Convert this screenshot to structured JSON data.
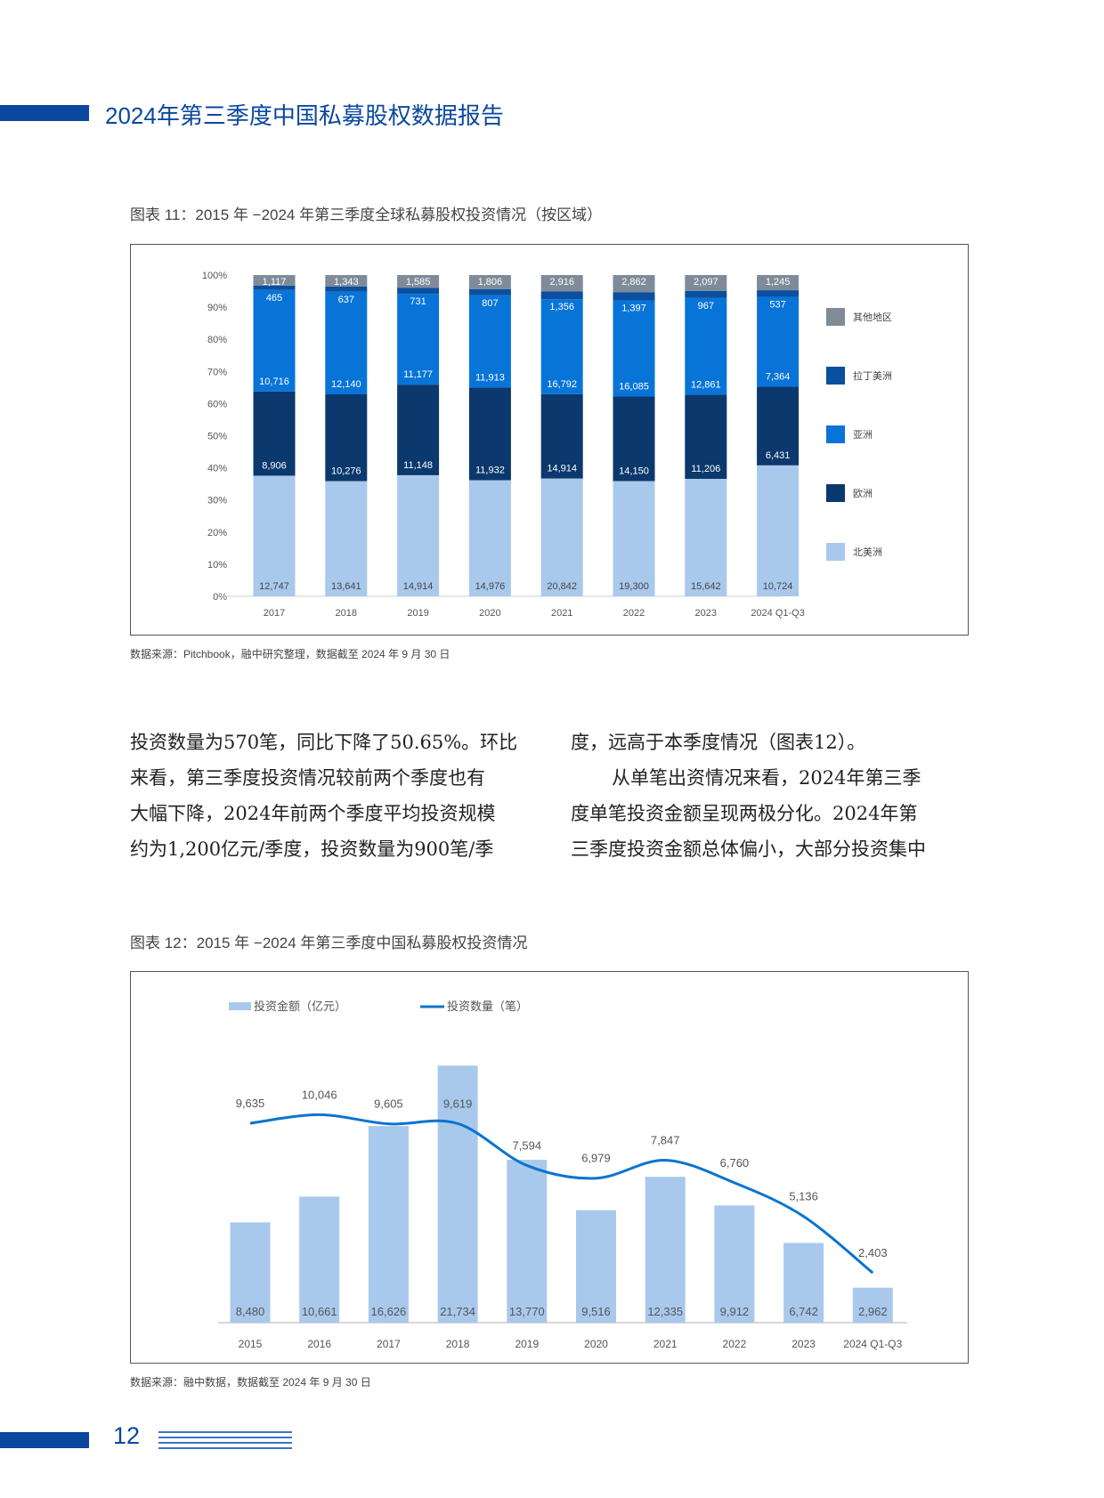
{
  "header": {
    "title": "2024年第三季度中国私募股权数据报告",
    "brand_color": "#0a479e"
  },
  "figure11": {
    "caption": "图表 11：2015 年 −2024 年第三季度全球私募股权投资情况（按区域）",
    "source": "数据来源：Pitchbook，融中研究整理，数据截至 2024 年 9 月 30 日"
  },
  "body": {
    "left_lines": [
      "投资数量为570笔，同比下降了50.65%。环比",
      "来看，第三季度投资情况较前两个季度也有",
      "大幅下降，2024年前两个季度平均投资规模",
      "约为1,200亿元/季度，投资数量为900笔/季"
    ],
    "right_lines": [
      "度，远高于本季度情况（图表12）。",
      "从单笔出资情况来看，2024年第三季",
      "度单笔投资金额呈现两极分化。2024年第",
      "三季度投资金额总体偏小，大部分投资集中"
    ]
  },
  "figure12": {
    "caption": "图表 12：2015 年 −2024 年第三季度中国私募股权投资情况",
    "source": "数据来源：融中数据，数据截至 2024 年 9 月 30 日"
  },
  "footer": {
    "page_number": "12"
  },
  "chart_data": [
    {
      "type": "bar",
      "stacked": "percent",
      "categories": [
        "2017",
        "2018",
        "2019",
        "2020",
        "2021",
        "2022",
        "2023",
        "2024 Q1-Q3"
      ],
      "yticks": [
        "0%",
        "10%",
        "20%",
        "30%",
        "40%",
        "50%",
        "60%",
        "70%",
        "80%",
        "90%",
        "100%"
      ],
      "ylim": [
        0,
        100
      ],
      "legend_placement": "right",
      "series": [
        {
          "name": "北美洲",
          "color": "#a9c9ec",
          "values": [
            12747,
            13641,
            14914,
            14976,
            20842,
            19300,
            15642,
            10724
          ]
        },
        {
          "name": "欧洲",
          "color": "#0b386d",
          "values": [
            8906,
            10276,
            11148,
            11932,
            14914,
            14150,
            11206,
            6431
          ]
        },
        {
          "name": "亚洲",
          "color": "#0874d8",
          "values": [
            10716,
            12140,
            11177,
            11913,
            16792,
            16085,
            12861,
            7364
          ]
        },
        {
          "name": "拉丁美洲",
          "color": "#0a4fa0",
          "values": [
            465,
            637,
            731,
            807,
            1356,
            1397,
            967,
            537
          ]
        },
        {
          "name": "其他地区",
          "color": "#7f8b99",
          "values": [
            1117,
            1343,
            1585,
            1806,
            2916,
            2862,
            2097,
            1245
          ]
        }
      ],
      "legend_order": [
        "其他地区",
        "拉丁美洲",
        "亚洲",
        "欧洲",
        "北美洲"
      ]
    },
    {
      "type": "bar+line",
      "categories": [
        "2015",
        "2016",
        "2017",
        "2018",
        "2019",
        "2020",
        "2021",
        "2022",
        "2023",
        "2024 Q1-Q3"
      ],
      "legend_placement": "top-left",
      "series": [
        {
          "name": "投资金额（亿元）",
          "type": "bar",
          "color": "#a9c9ec",
          "axis": "left",
          "values": [
            8480,
            10661,
            16626,
            21734,
            13770,
            9516,
            12335,
            9912,
            6742,
            2962
          ]
        },
        {
          "name": "投资数量（笔）",
          "type": "line",
          "color": "#0a74d0",
          "axis": "right",
          "values": [
            9635,
            10046,
            9605,
            9619,
            7594,
            6979,
            7847,
            6760,
            5136,
            2403
          ]
        }
      ],
      "ylim_left": [
        0,
        28000
      ],
      "ylim_right": [
        0,
        16000
      ],
      "grid": false
    }
  ]
}
